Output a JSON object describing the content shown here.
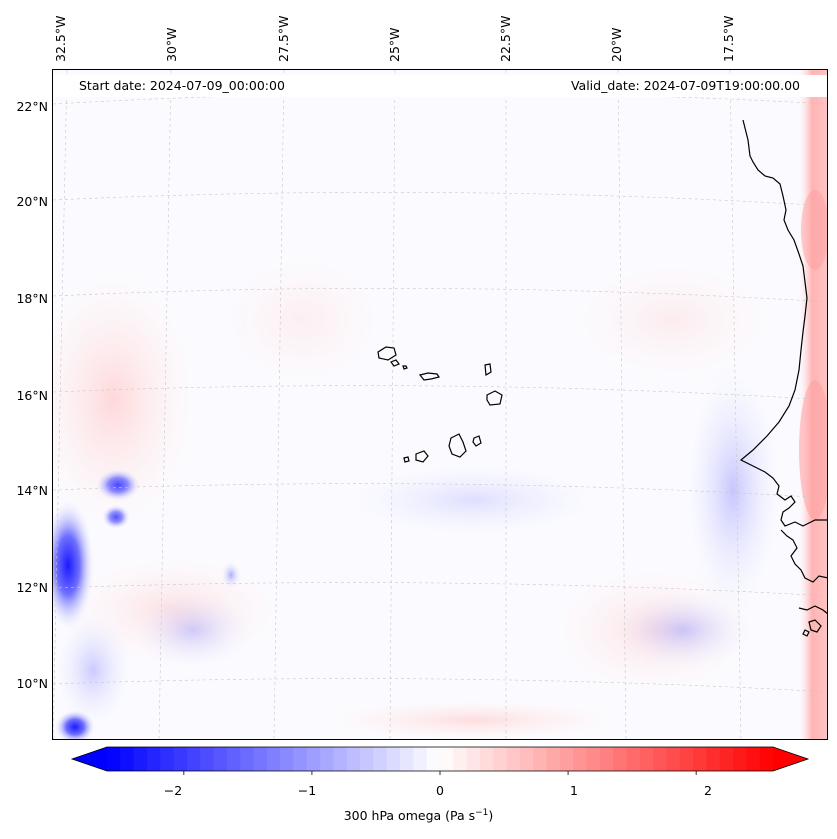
{
  "header": {
    "start_date": "Start date: 2024-07-09_00:00:00",
    "valid_date": "Valid_date: 2024-07-09T19:00:00.00"
  },
  "map": {
    "variable": "300 hPa omega",
    "region": "Cabo Verde and West African coast",
    "longitude_labels": [
      "32.5°W",
      "30°W",
      "27.5°W",
      "25°W",
      "22.5°W",
      "20°W",
      "17.5°W"
    ],
    "latitude_labels": [
      "22°N",
      "20°N",
      "18°N",
      "16°N",
      "14°N",
      "12°N",
      "10°N"
    ]
  },
  "colorbar": {
    "ticks": [
      "−2",
      "−1",
      "0",
      "1",
      "2"
    ],
    "label": "300 hPa omega (Pa s",
    "label_exponent": "−1",
    "label_close": ")",
    "vmin": -2.6,
    "vmax": 2.6,
    "min_color": "#0000ff",
    "mid_color": "#ffffff",
    "max_color": "#ff0000"
  }
}
